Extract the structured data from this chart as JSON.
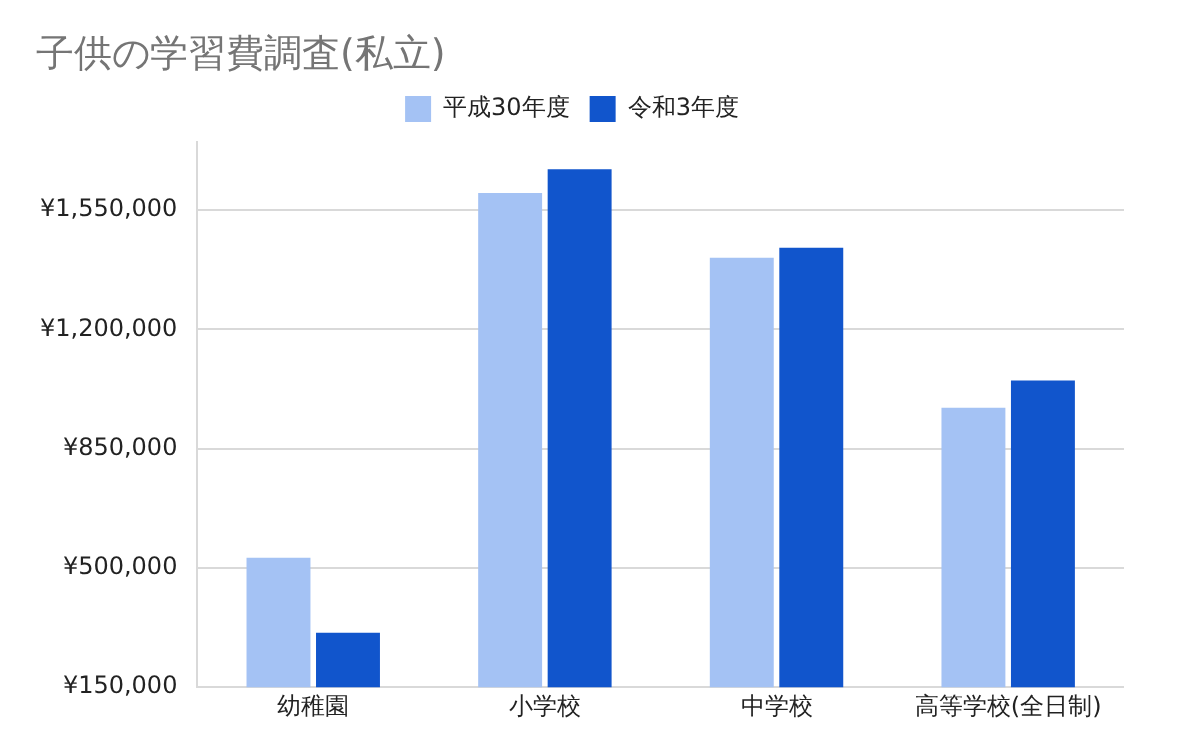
{
  "chart_data": {
    "type": "bar",
    "title": "子供の学習費調査(私立)",
    "categories": [
      "幼稚園",
      "小学校",
      "中学校",
      "高等学校(全日制)"
    ],
    "series": [
      {
        "name": "平成30年度",
        "color": "#a4c2f4",
        "values": [
          530000,
          1600000,
          1410000,
          970000
        ]
      },
      {
        "name": "令和3年度",
        "color": "#1155cc",
        "values": [
          310000,
          1670000,
          1440000,
          1050000
        ]
      }
    ],
    "ylim": [
      150000,
      1750000
    ],
    "yticks": [
      {
        "value": 150000,
        "label": "¥150,000"
      },
      {
        "value": 500000,
        "label": "¥500,000"
      },
      {
        "value": 850000,
        "label": "¥850,000"
      },
      {
        "value": 1200000,
        "label": "¥1,200,000"
      },
      {
        "value": 1550000,
        "label": "¥1,550,000"
      }
    ],
    "grid": "y",
    "legend": "top"
  }
}
